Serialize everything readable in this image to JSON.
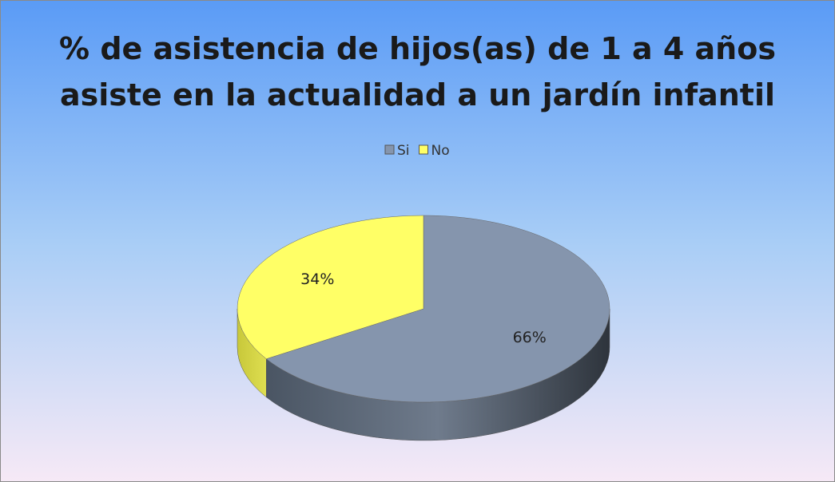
{
  "chart_data": {
    "type": "pie",
    "title": "% de asistencia de hijos(as) de 1 a 4 años asiste en la actualidad a un jardín infantil",
    "categories": [
      "Si",
      "No"
    ],
    "values": [
      66,
      34
    ],
    "value_labels": [
      "66%",
      "34%"
    ],
    "colors": [
      "#8595ad",
      "#ffff66"
    ],
    "legend": "top"
  }
}
